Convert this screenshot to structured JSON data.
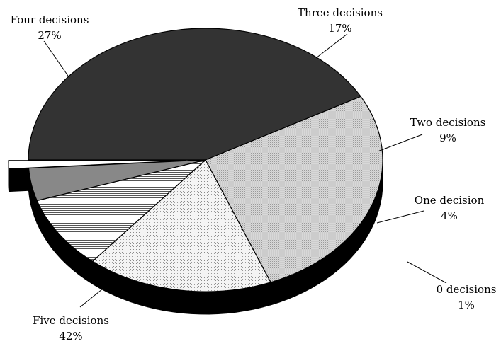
{
  "chart_data": {
    "type": "pie",
    "style": "3d-exploded",
    "title": "",
    "slices": [
      {
        "label": "Five decisions",
        "value": 42,
        "pct_label": "42%",
        "fill": "dark"
      },
      {
        "label": "Four decisions",
        "value": 27,
        "pct_label": "27%",
        "fill": "light-dots"
      },
      {
        "label": "Three decisions",
        "value": 17,
        "pct_label": "17%",
        "fill": "sparse-dots"
      },
      {
        "label": "Two decisions",
        "value": 9,
        "pct_label": "9%",
        "fill": "horizontal-lines"
      },
      {
        "label": "One decision",
        "value": 4,
        "pct_label": "4%",
        "fill": "gray"
      },
      {
        "label": "0 decisions",
        "value": 1,
        "pct_label": "1%",
        "fill": "white",
        "exploded": true
      }
    ],
    "colors": {
      "dark": "#333333",
      "gray": "#888888",
      "side": "#000000",
      "outline": "#000000"
    }
  }
}
